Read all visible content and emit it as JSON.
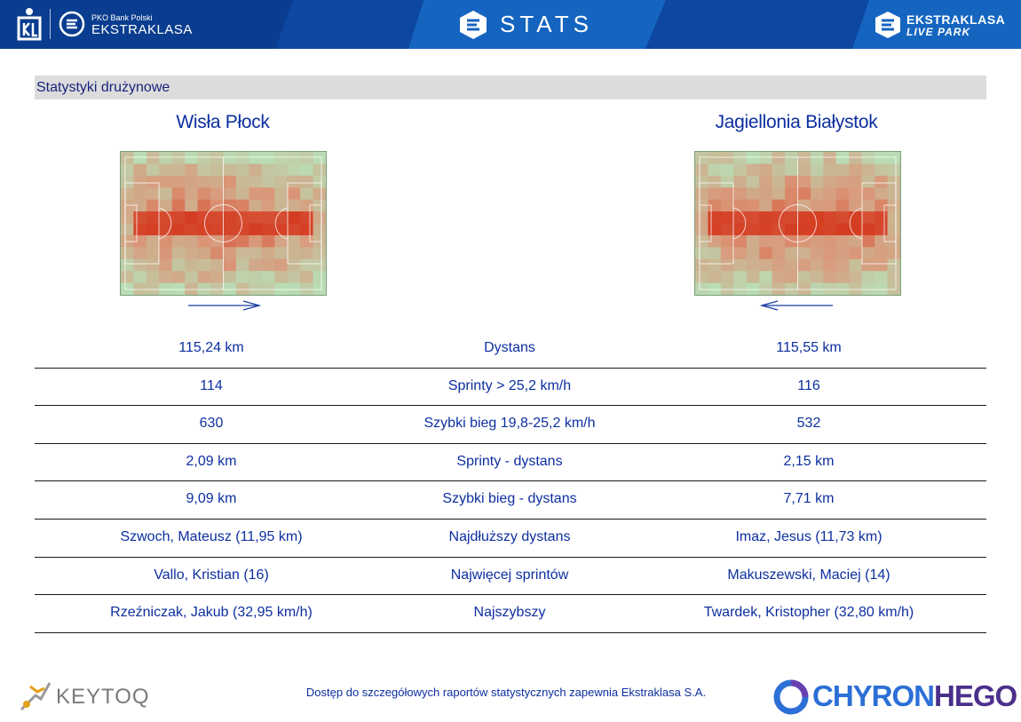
{
  "header": {
    "pko_small": "PKO Bank Polski",
    "ekstraklasa": "EKSTRAKLASA",
    "stats_title": "STATS",
    "live_park_line1": "EKSTRAKLASA",
    "live_park_line2": "LIVE PARK"
  },
  "section_title": "Statystyki drużynowe",
  "teams": {
    "home": {
      "name": "Wisła Płock",
      "attack_direction": "right"
    },
    "away": {
      "name": "Jagiellonia Białystok",
      "attack_direction": "left"
    }
  },
  "stats": [
    {
      "home": "115,24 km",
      "label": "Dystans",
      "away": "115,55 km"
    },
    {
      "home": "114",
      "label": "Sprinty > 25,2 km/h",
      "away": "116"
    },
    {
      "home": "630",
      "label": "Szybki bieg 19,8-25,2 km/h",
      "away": "532"
    },
    {
      "home": "2,09 km",
      "label": "Sprinty - dystans",
      "away": "2,15 km"
    },
    {
      "home": "9,09 km",
      "label": "Szybki bieg - dystans",
      "away": "7,71 km"
    },
    {
      "home": "Szwoch, Mateusz (11,95 km)",
      "label": "Najdłuższy dystans",
      "away": "Imaz, Jesus (11,73 km)"
    },
    {
      "home": "Vallo, Kristian (16)",
      "label": "Najwięcej sprintów",
      "away": "Makuszewski, Maciej (14)"
    },
    {
      "home": "Rzeźniczak, Jakub (32,95 km/h)",
      "label": "Najszybszy",
      "away": "Twardek, Kristopher (32,80 km/h)"
    }
  ],
  "footer": {
    "keytoq": "KEYTOQ",
    "note": "Dostęp do szczegółowych raportów statystycznych zapewnia Ekstraklasa S.A.",
    "chyron_part1": "CHYRON",
    "chyron_part2": "HEGO"
  },
  "colors": {
    "header_bg": "#0d47a1",
    "text_blue": "#0d2fa0",
    "section_bar": "#dcdcdc",
    "heat_high": "#d4371c",
    "heat_low": "#b9dcb4"
  }
}
